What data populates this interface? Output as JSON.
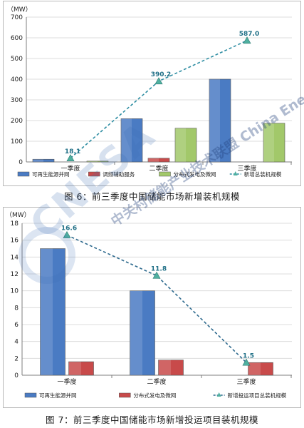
{
  "watermark": {
    "logo": "CNESA",
    "text": "中关村储能产业技术联盟 China Energy Storage Alliance",
    "ring_text": "CHINA ENERGY STORAGE ALLIANCE"
  },
  "chart_data": [
    {
      "type": "bar",
      "title": "图 6：前三季度中国储能市场新增装机规模",
      "unit_label": "（MW）",
      "ylim": [
        0,
        700
      ],
      "yticks": [
        0,
        100,
        200,
        300,
        400,
        500,
        600,
        700
      ],
      "categories": [
        "一季度",
        "二季度",
        "三季度"
      ],
      "series": [
        {
          "name": "可再生能源并网",
          "kind": "bar",
          "color": "#4a7bc3",
          "values": [
            13,
            209,
            400
          ]
        },
        {
          "name": "调频辅助服务",
          "kind": "bar",
          "color": "#c84a4a",
          "values": [
            0,
            18,
            0
          ]
        },
        {
          "name": "分布式发电及微网",
          "kind": "bar",
          "color": "#a2c86a",
          "values": [
            4,
            163,
            187
          ]
        },
        {
          "name": "新增总装机规模",
          "kind": "line",
          "color": "#2f8ea3",
          "values": [
            18.1,
            390.2,
            587.0
          ],
          "labels": [
            "18.1",
            "390.2",
            "587.0"
          ]
        }
      ],
      "grid": true
    },
    {
      "type": "bar",
      "title": "图 7：前三季度中国储能市场新增投运项目装机规模",
      "unit_label": "（MW）",
      "ylim": [
        0,
        18
      ],
      "yticks": [
        0,
        2,
        4,
        6,
        8,
        10,
        12,
        14,
        16,
        18
      ],
      "categories": [
        "一季度",
        "二季度",
        "三季度"
      ],
      "series": [
        {
          "name": "可再生能源并网",
          "kind": "bar",
          "color": "#4a7bc3",
          "values": [
            15.0,
            10.0,
            0
          ]
        },
        {
          "name": "分布式发电及微网",
          "kind": "bar",
          "color": "#c84a4a",
          "values": [
            1.6,
            1.8,
            1.5
          ]
        },
        {
          "name": "新增投运项目总装机规模",
          "kind": "line",
          "color": "#2e6a8e",
          "values": [
            16.6,
            11.8,
            1.5
          ],
          "labels": [
            "16.6",
            "11.8",
            "1.5"
          ]
        }
      ],
      "grid": true
    }
  ]
}
